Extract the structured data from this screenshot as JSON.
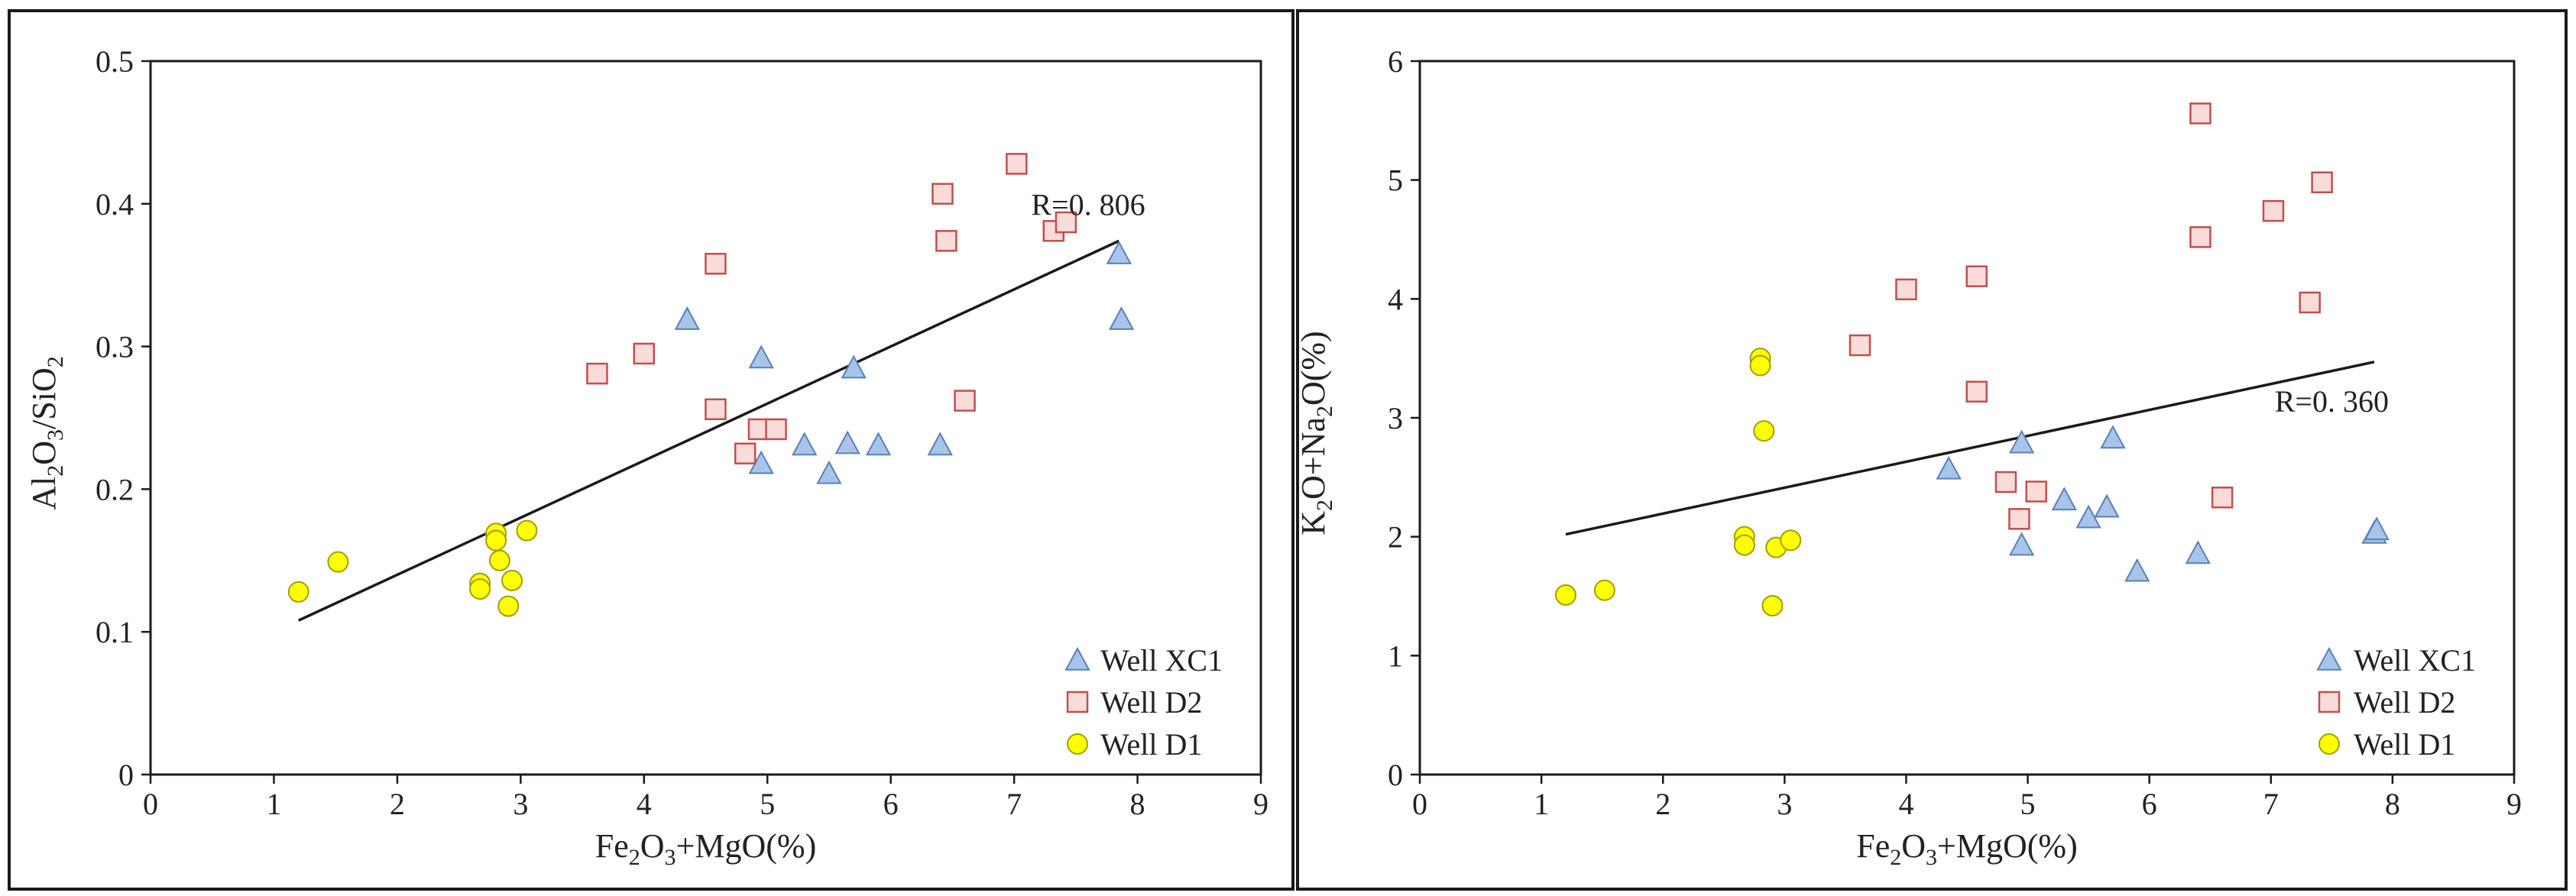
{
  "chart_data": [
    {
      "type": "scatter",
      "xlabel": "Fe2O3+MgO(%)",
      "ylabel": "Al2O3/SiO2",
      "xlim": [
        0,
        9
      ],
      "ylim": [
        0,
        0.5
      ],
      "x_ticks": [
        0,
        1,
        2,
        3,
        4,
        5,
        6,
        7,
        8,
        9
      ],
      "x_tick_labels": [
        "0",
        "1",
        "2",
        "3",
        "4",
        "5",
        "6",
        "7",
        "8",
        "9"
      ],
      "y_ticks": [
        0,
        0.1,
        0.2,
        0.3,
        0.4,
        0.5
      ],
      "y_tick_labels": [
        "0",
        "0.1",
        "0.2",
        "0.3",
        "0.4",
        "0.5"
      ],
      "legend_position": "bottom-right",
      "series": [
        {
          "name": "Well XC1",
          "marker": "triangle",
          "color": "#a9c4ea",
          "stroke": "#5a80b8",
          "points": [
            [
              4.35,
              0.319
            ],
            [
              4.95,
              0.292
            ],
            [
              4.95,
              0.218
            ],
            [
              5.3,
              0.231
            ],
            [
              5.5,
              0.211
            ],
            [
              5.65,
              0.232
            ],
            [
              5.7,
              0.285
            ],
            [
              5.9,
              0.231
            ],
            [
              6.4,
              0.231
            ],
            [
              7.85,
              0.365
            ],
            [
              7.87,
              0.319
            ]
          ]
        },
        {
          "name": "Well D2",
          "marker": "square",
          "color": "#f9dcda",
          "stroke": "#c0504d",
          "points": [
            [
              3.62,
              0.281
            ],
            [
              4.0,
              0.295
            ],
            [
              4.58,
              0.358
            ],
            [
              4.58,
              0.256
            ],
            [
              4.82,
              0.225
            ],
            [
              4.93,
              0.242
            ],
            [
              5.07,
              0.242
            ],
            [
              6.42,
              0.407
            ],
            [
              6.45,
              0.374
            ],
            [
              6.6,
              0.262
            ],
            [
              7.02,
              0.428
            ],
            [
              7.32,
              0.381
            ],
            [
              7.42,
              0.387
            ]
          ]
        },
        {
          "name": "Well D1",
          "marker": "circle",
          "color": "#ffff00",
          "stroke": "#a0a000",
          "points": [
            [
              1.2,
              0.128
            ],
            [
              1.52,
              0.149
            ],
            [
              2.67,
              0.134
            ],
            [
              2.67,
              0.13
            ],
            [
              2.8,
              0.169
            ],
            [
              2.8,
              0.164
            ],
            [
              2.83,
              0.15
            ],
            [
              2.9,
              0.118
            ],
            [
              2.93,
              0.136
            ],
            [
              3.05,
              0.171
            ]
          ]
        }
      ],
      "trendline": {
        "x": [
          1.2,
          7.85
        ],
        "y": [
          0.108,
          0.374
        ]
      },
      "annotations": [
        {
          "text": "R=0. 806",
          "x": 7.6,
          "y": 0.392
        }
      ]
    },
    {
      "type": "scatter",
      "xlabel": "Fe2O3+MgO(%)",
      "ylabel": "K2O+Na2O(%)",
      "xlim": [
        0,
        9
      ],
      "ylim": [
        0,
        6
      ],
      "x_ticks": [
        0,
        1,
        2,
        3,
        4,
        5,
        6,
        7,
        8,
        9
      ],
      "x_tick_labels": [
        "0",
        "1",
        "2",
        "3",
        "4",
        "5",
        "6",
        "7",
        "8",
        "9"
      ],
      "y_ticks": [
        0,
        1,
        2,
        3,
        4,
        5,
        6
      ],
      "y_tick_labels": [
        "0",
        "1",
        "2",
        "3",
        "4",
        "5",
        "6"
      ],
      "legend_position": "bottom-right",
      "series": [
        {
          "name": "Well XC1",
          "marker": "triangle",
          "color": "#a9c4ea",
          "stroke": "#5a80b8",
          "points": [
            [
              4.35,
              2.57
            ],
            [
              4.95,
              2.79
            ],
            [
              4.95,
              1.93
            ],
            [
              5.3,
              2.31
            ],
            [
              5.5,
              2.16
            ],
            [
              5.65,
              2.25
            ],
            [
              5.7,
              2.83
            ],
            [
              5.9,
              1.71
            ],
            [
              6.4,
              1.86
            ],
            [
              7.85,
              2.03
            ],
            [
              7.87,
              2.06
            ]
          ]
        },
        {
          "name": "Well D2",
          "marker": "square",
          "color": "#f9dcda",
          "stroke": "#c0504d",
          "points": [
            [
              3.62,
              3.61
            ],
            [
              4.0,
              4.08
            ],
            [
              4.58,
              4.19
            ],
            [
              4.58,
              3.22
            ],
            [
              4.82,
              2.46
            ],
            [
              4.93,
              2.15
            ],
            [
              5.07,
              2.38
            ],
            [
              6.42,
              5.56
            ],
            [
              6.42,
              4.52
            ],
            [
              6.6,
              2.33
            ],
            [
              7.02,
              4.74
            ],
            [
              7.32,
              3.97
            ],
            [
              7.42,
              4.98
            ]
          ]
        },
        {
          "name": "Well D1",
          "marker": "circle",
          "color": "#ffff00",
          "stroke": "#a0a000",
          "points": [
            [
              1.2,
              1.51
            ],
            [
              1.52,
              1.55
            ],
            [
              2.67,
              2.0
            ],
            [
              2.67,
              1.93
            ],
            [
              2.8,
              3.5
            ],
            [
              2.8,
              3.44
            ],
            [
              2.83,
              2.89
            ],
            [
              2.9,
              1.42
            ],
            [
              2.93,
              1.91
            ],
            [
              3.05,
              1.97
            ]
          ]
        }
      ],
      "trendline": {
        "x": [
          1.2,
          7.85
        ],
        "y": [
          2.02,
          3.47
        ]
      },
      "annotations": [
        {
          "text": "R=0. 360",
          "x": 7.5,
          "y": 3.05
        }
      ]
    }
  ]
}
